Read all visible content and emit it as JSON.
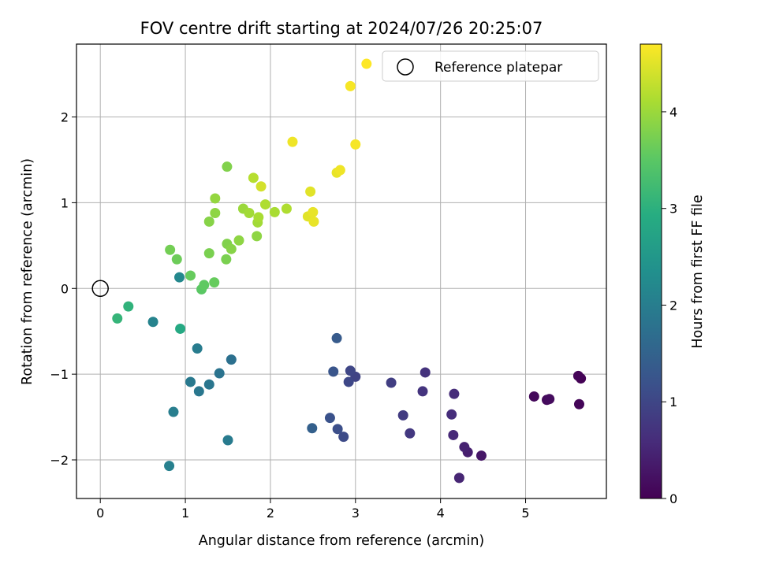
{
  "chart_data": {
    "type": "scatter",
    "title": "FOV centre drift starting at 2024/07/26 20:25:07",
    "xlabel": "Angular distance from reference (arcmin)",
    "ylabel": "Rotation from reference (arcmin)",
    "xlim": [
      -0.28,
      5.95
    ],
    "ylim": [
      -2.45,
      2.85
    ],
    "x_ticks": [
      0,
      1,
      2,
      3,
      4,
      5
    ],
    "y_ticks": [
      -2,
      -1,
      0,
      1,
      2
    ],
    "grid": true,
    "legend": {
      "position": "top-right",
      "entries": [
        "Reference platepar"
      ]
    },
    "reference": {
      "name": "Reference platepar",
      "x": 0,
      "y": 0,
      "marker": "open-circle"
    },
    "colorbar": {
      "label": "Hours from first FF file",
      "range": [
        0,
        4.7
      ],
      "ticks": [
        0,
        1,
        2,
        3,
        4
      ],
      "colormap": "viridis"
    },
    "points": [
      {
        "x": 5.65,
        "y": -1.05,
        "c": 0.02
      },
      {
        "x": 5.62,
        "y": -1.02,
        "c": 0.04
      },
      {
        "x": 5.63,
        "y": -1.35,
        "c": 0.06
      },
      {
        "x": 5.1,
        "y": -1.26,
        "c": 0.09
      },
      {
        "x": 5.25,
        "y": -1.3,
        "c": 0.12
      },
      {
        "x": 5.28,
        "y": -1.29,
        "c": 0.15
      },
      {
        "x": 4.48,
        "y": -1.95,
        "c": 0.3
      },
      {
        "x": 4.32,
        "y": -1.91,
        "c": 0.4
      },
      {
        "x": 4.28,
        "y": -1.85,
        "c": 0.45
      },
      {
        "x": 4.22,
        "y": -2.21,
        "c": 0.5
      },
      {
        "x": 4.15,
        "y": -1.71,
        "c": 0.55
      },
      {
        "x": 4.16,
        "y": -1.23,
        "c": 0.6
      },
      {
        "x": 4.13,
        "y": -1.47,
        "c": 0.62
      },
      {
        "x": 3.82,
        "y": -0.98,
        "c": 0.7
      },
      {
        "x": 3.79,
        "y": -1.2,
        "c": 0.72
      },
      {
        "x": 3.64,
        "y": -1.69,
        "c": 0.78
      },
      {
        "x": 3.56,
        "y": -1.48,
        "c": 0.82
      },
      {
        "x": 3.42,
        "y": -1.1,
        "c": 0.88
      },
      {
        "x": 3.0,
        "y": -1.03,
        "c": 0.95
      },
      {
        "x": 2.94,
        "y": -0.96,
        "c": 1.0
      },
      {
        "x": 2.92,
        "y": -1.09,
        "c": 1.02
      },
      {
        "x": 2.86,
        "y": -1.73,
        "c": 1.08
      },
      {
        "x": 2.79,
        "y": -1.64,
        "c": 1.15
      },
      {
        "x": 2.7,
        "y": -1.51,
        "c": 1.2
      },
      {
        "x": 2.74,
        "y": -0.97,
        "c": 1.25
      },
      {
        "x": 2.78,
        "y": -0.58,
        "c": 1.35
      },
      {
        "x": 2.49,
        "y": -1.63,
        "c": 1.45
      },
      {
        "x": 1.54,
        "y": -0.83,
        "c": 1.75
      },
      {
        "x": 1.4,
        "y": -0.99,
        "c": 1.8
      },
      {
        "x": 1.28,
        "y": -1.12,
        "c": 1.85
      },
      {
        "x": 1.16,
        "y": -1.2,
        "c": 1.88
      },
      {
        "x": 1.06,
        "y": -1.09,
        "c": 1.92
      },
      {
        "x": 1.14,
        "y": -0.7,
        "c": 1.98
      },
      {
        "x": 1.5,
        "y": -1.77,
        "c": 1.95
      },
      {
        "x": 0.86,
        "y": -1.44,
        "c": 2.0
      },
      {
        "x": 0.81,
        "y": -2.07,
        "c": 2.05
      },
      {
        "x": 0.62,
        "y": -0.39,
        "c": 2.1
      },
      {
        "x": 0.93,
        "y": 0.13,
        "c": 2.2
      },
      {
        "x": 0.94,
        "y": -0.47,
        "c": 2.85
      },
      {
        "x": 0.33,
        "y": -0.21,
        "c": 3.05
      },
      {
        "x": 0.2,
        "y": -0.35,
        "c": 3.1
      },
      {
        "x": 1.19,
        "y": -0.01,
        "c": 3.5
      },
      {
        "x": 1.22,
        "y": 0.04,
        "c": 3.55
      },
      {
        "x": 1.34,
        "y": 0.07,
        "c": 3.6
      },
      {
        "x": 1.06,
        "y": 0.15,
        "c": 3.6
      },
      {
        "x": 0.9,
        "y": 0.34,
        "c": 3.65
      },
      {
        "x": 0.82,
        "y": 0.45,
        "c": 3.7
      },
      {
        "x": 1.28,
        "y": 0.41,
        "c": 3.75
      },
      {
        "x": 1.48,
        "y": 0.34,
        "c": 3.75
      },
      {
        "x": 1.49,
        "y": 0.52,
        "c": 3.8
      },
      {
        "x": 1.54,
        "y": 0.46,
        "c": 3.85
      },
      {
        "x": 1.63,
        "y": 0.56,
        "c": 3.9
      },
      {
        "x": 1.84,
        "y": 0.61,
        "c": 3.9
      },
      {
        "x": 1.28,
        "y": 0.78,
        "c": 3.85
      },
      {
        "x": 1.35,
        "y": 0.88,
        "c": 3.9
      },
      {
        "x": 1.35,
        "y": 1.05,
        "c": 3.95
      },
      {
        "x": 1.49,
        "y": 1.42,
        "c": 3.8
      },
      {
        "x": 1.68,
        "y": 0.93,
        "c": 4.0
      },
      {
        "x": 1.75,
        "y": 0.88,
        "c": 4.05
      },
      {
        "x": 1.85,
        "y": 0.77,
        "c": 4.05
      },
      {
        "x": 1.86,
        "y": 0.83,
        "c": 4.1
      },
      {
        "x": 1.94,
        "y": 0.98,
        "c": 4.15
      },
      {
        "x": 2.05,
        "y": 0.89,
        "c": 4.1
      },
      {
        "x": 2.19,
        "y": 0.93,
        "c": 4.15
      },
      {
        "x": 1.8,
        "y": 1.29,
        "c": 4.2
      },
      {
        "x": 1.89,
        "y": 1.19,
        "c": 4.4
      },
      {
        "x": 2.44,
        "y": 0.84,
        "c": 4.5
      },
      {
        "x": 2.5,
        "y": 0.89,
        "c": 4.55
      },
      {
        "x": 2.51,
        "y": 0.78,
        "c": 4.55
      },
      {
        "x": 2.47,
        "y": 1.13,
        "c": 4.5
      },
      {
        "x": 2.26,
        "y": 1.71,
        "c": 4.6
      },
      {
        "x": 2.78,
        "y": 1.35,
        "c": 4.55
      },
      {
        "x": 2.82,
        "y": 1.38,
        "c": 4.6
      },
      {
        "x": 3.0,
        "y": 1.68,
        "c": 4.65
      },
      {
        "x": 2.94,
        "y": 2.36,
        "c": 4.65
      },
      {
        "x": 3.13,
        "y": 2.62,
        "c": 4.7
      }
    ]
  }
}
